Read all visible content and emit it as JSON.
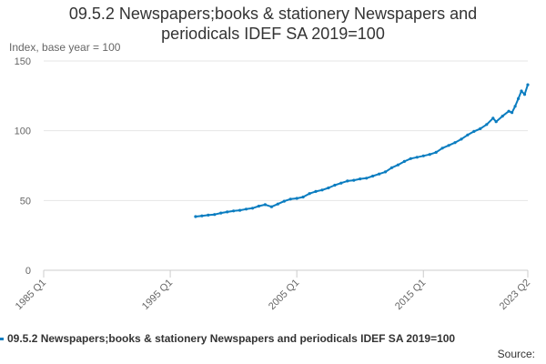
{
  "chart_data": {
    "type": "line",
    "title_lines": [
      "09.5.2 Newspapers;books & stationery Newspapers and",
      "periodicals IDEF SA 2019=100"
    ],
    "ylabel": "Index, base year = 100",
    "ylim": [
      0,
      150
    ],
    "yticks": [
      0,
      50,
      100,
      150
    ],
    "xlim": [
      "1985 Q1",
      "2023 Q2"
    ],
    "xticks": [
      "1985 Q1",
      "1995 Q1",
      "2005 Q1",
      "2015 Q1",
      "2023 Q2"
    ],
    "grid": "horizontal",
    "legend_position": "bottom",
    "series": [
      {
        "name": "09.5.2 Newspapers;books & stationery Newspapers and periodicals IDEF SA 2019=100",
        "color": "#0b7dc0",
        "points": [
          [
            "1997 Q1",
            38.5
          ],
          [
            "1997 Q3",
            39.0
          ],
          [
            "1998 Q1",
            39.5
          ],
          [
            "1998 Q3",
            40.0
          ],
          [
            "1999 Q1",
            41.0
          ],
          [
            "1999 Q3",
            41.8
          ],
          [
            "2000 Q1",
            42.5
          ],
          [
            "2000 Q3",
            43.0
          ],
          [
            "2001 Q1",
            43.8
          ],
          [
            "2001 Q3",
            44.5
          ],
          [
            "2002 Q1",
            46.0
          ],
          [
            "2002 Q3",
            47.0
          ],
          [
            "2003 Q1",
            45.5
          ],
          [
            "2003 Q3",
            47.5
          ],
          [
            "2004 Q1",
            49.5
          ],
          [
            "2004 Q3",
            51.0
          ],
          [
            "2005 Q1",
            51.5
          ],
          [
            "2005 Q3",
            52.5
          ],
          [
            "2006 Q1",
            55.0
          ],
          [
            "2006 Q3",
            56.5
          ],
          [
            "2007 Q1",
            57.5
          ],
          [
            "2007 Q3",
            59.0
          ],
          [
            "2008 Q1",
            61.0
          ],
          [
            "2008 Q3",
            62.5
          ],
          [
            "2009 Q1",
            64.0
          ],
          [
            "2009 Q3",
            64.5
          ],
          [
            "2010 Q1",
            65.5
          ],
          [
            "2010 Q3",
            66.0
          ],
          [
            "2011 Q1",
            67.5
          ],
          [
            "2011 Q3",
            69.0
          ],
          [
            "2012 Q1",
            70.5
          ],
          [
            "2012 Q3",
            73.5
          ],
          [
            "2013 Q1",
            75.5
          ],
          [
            "2013 Q3",
            78.0
          ],
          [
            "2014 Q1",
            80.0
          ],
          [
            "2014 Q3",
            81.0
          ],
          [
            "2015 Q1",
            82.0
          ],
          [
            "2015 Q3",
            83.0
          ],
          [
            "2016 Q1",
            84.5
          ],
          [
            "2016 Q3",
            87.5
          ],
          [
            "2017 Q1",
            89.5
          ],
          [
            "2017 Q3",
            91.5
          ],
          [
            "2018 Q1",
            94.0
          ],
          [
            "2018 Q3",
            97.0
          ],
          [
            "2019 Q1",
            99.5
          ],
          [
            "2019 Q3",
            101.5
          ],
          [
            "2020 Q1",
            104.5
          ],
          [
            "2020 Q3",
            109.0
          ],
          [
            "2020 Q4",
            106.5
          ],
          [
            "2021 Q2",
            110.5
          ],
          [
            "2021 Q4",
            114.0
          ],
          [
            "2022 Q1",
            113.0
          ],
          [
            "2022 Q2",
            117.5
          ],
          [
            "2022 Q3",
            123.0
          ],
          [
            "2022 Q4",
            128.5
          ],
          [
            "2023 Q1",
            126.0
          ],
          [
            "2023 Q2",
            133.0
          ]
        ]
      }
    ]
  },
  "legend_label": "09.5.2 Newspapers;books & stationery Newspapers and periodicals IDEF SA 2019=100",
  "source_label": "Source:"
}
